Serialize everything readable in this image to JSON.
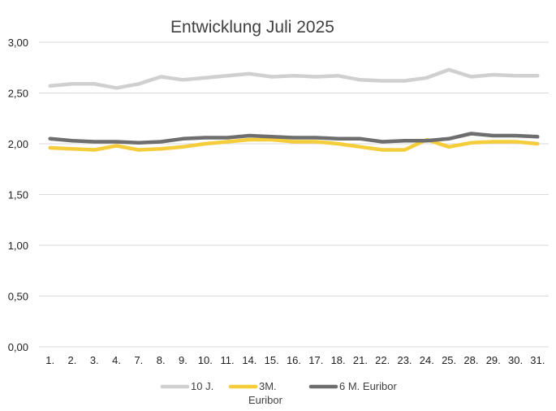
{
  "chart_data": {
    "type": "line",
    "title": "Entwicklung Juli 2025",
    "xlabel": "",
    "ylabel": "",
    "ylim": [
      0,
      3
    ],
    "ytick_labels": [
      "0,00",
      "0,50",
      "1,00",
      "1,50",
      "2,00",
      "2,50",
      "3,00"
    ],
    "categories": [
      "1.",
      "2.",
      "3.",
      "4.",
      "7.",
      "8.",
      "9.",
      "10.",
      "11.",
      "14.",
      "15.",
      "16.",
      "17.",
      "18.",
      "21.",
      "22.",
      "23.",
      "24.",
      "25.",
      "28.",
      "29.",
      "30.",
      "31."
    ],
    "grid": true,
    "legend_position": "bottom",
    "series": [
      {
        "name": "10 J.",
        "legend_lines": [
          "10 J."
        ],
        "color": "#d0d0d0",
        "values": [
          2.57,
          2.59,
          2.59,
          2.55,
          2.59,
          2.66,
          2.63,
          2.65,
          2.67,
          2.69,
          2.66,
          2.67,
          2.66,
          2.67,
          2.63,
          2.62,
          2.62,
          2.65,
          2.73,
          2.66,
          2.68,
          2.67,
          2.67
        ]
      },
      {
        "name": "3M. Euribor",
        "legend_lines": [
          "3M.",
          "Euribor"
        ],
        "color": "#f5cd3a",
        "values": [
          1.96,
          1.95,
          1.94,
          1.98,
          1.94,
          1.95,
          1.97,
          2.0,
          2.02,
          2.04,
          2.04,
          2.02,
          2.02,
          2.0,
          1.97,
          1.94,
          1.94,
          2.04,
          1.97,
          2.01,
          2.02,
          2.02,
          2.0
        ]
      },
      {
        "name": "6 M. Euribor",
        "legend_lines": [
          "6 M. Euribor"
        ],
        "color": "#6e6e6e",
        "values": [
          2.05,
          2.03,
          2.02,
          2.02,
          2.01,
          2.02,
          2.05,
          2.06,
          2.06,
          2.08,
          2.07,
          2.06,
          2.06,
          2.05,
          2.05,
          2.02,
          2.03,
          2.03,
          2.05,
          2.1,
          2.08,
          2.08,
          2.07
        ]
      }
    ]
  }
}
